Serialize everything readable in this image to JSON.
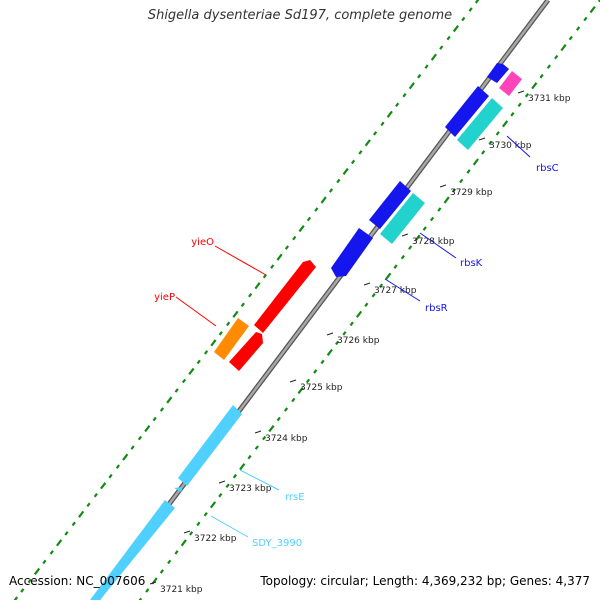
{
  "title": "Shigella dysenteriae Sd197, complete genome",
  "accession": "Accession: NC_007606",
  "summary": "Topology: circular; Length: 4,369,232 bp; Genes: 4,377",
  "colors": {
    "backbone": "#8f8f8f",
    "rrna": "#4fd0ff",
    "red_gene": "#ff0000",
    "orange_gene": "#ff8c00",
    "blue_gene": "#1515ee",
    "teal_gene": "#22d2cc",
    "pink_gene": "#ff44bb",
    "gc_skew": "#138a13"
  },
  "ticks": [
    {
      "label": "3721 kbp"
    },
    {
      "label": "3722 kbp"
    },
    {
      "label": "3723 kbp"
    },
    {
      "label": "3724 kbp"
    },
    {
      "label": "3725 kbp"
    },
    {
      "label": "3726 kbp"
    },
    {
      "label": "3727 kbp"
    },
    {
      "label": "3728 kbp"
    },
    {
      "label": "3729 kbp"
    },
    {
      "label": "3730 kbp"
    },
    {
      "label": "3731 kbp"
    }
  ],
  "gene_labels": [
    {
      "name": "yieO",
      "color": "#ff0000"
    },
    {
      "name": "yieP",
      "color": "#ff0000"
    },
    {
      "name": "rbsC",
      "color": "#1515ee"
    },
    {
      "name": "rbsK",
      "color": "#1515ee"
    },
    {
      "name": "rbsR",
      "color": "#1515ee"
    },
    {
      "name": "rrsE",
      "color": "#4fd0ff"
    },
    {
      "name": "SDY_3990",
      "color": "#4fd0ff"
    }
  ]
}
